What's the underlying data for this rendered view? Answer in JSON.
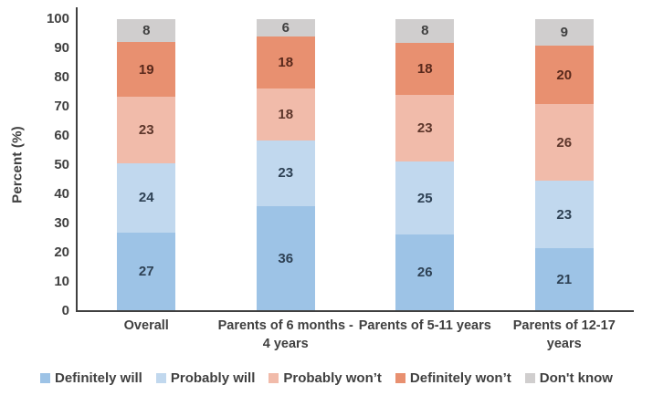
{
  "chart_data": {
    "type": "bar",
    "variant": "stacked-100",
    "title": "",
    "ylabel": "Percent (%)",
    "xlabel": "",
    "ylim": [
      0,
      100
    ],
    "yticks": [
      0,
      10,
      20,
      30,
      40,
      50,
      60,
      70,
      80,
      90,
      100
    ],
    "grid": false,
    "legend_position": "bottom",
    "categories": [
      "Overall",
      "Parents of 6 months - 4 years",
      "Parents of 5-11 years",
      "Parents of 12-17 years"
    ],
    "series": [
      {
        "name": "Definitely will",
        "color": "#9DC3E6",
        "label_color": "#2E4154",
        "values": [
          27,
          36,
          26,
          21
        ]
      },
      {
        "name": "Probably will",
        "color": "#C1D8EE",
        "label_color": "#2E4154",
        "values": [
          24,
          23,
          25,
          23
        ]
      },
      {
        "name": "Probably won’t",
        "color": "#F1BBAA",
        "label_color": "#5D362B",
        "values": [
          23,
          18,
          23,
          26
        ]
      },
      {
        "name": "Definitely won’t",
        "color": "#E89070",
        "label_color": "#59291C",
        "values": [
          19,
          18,
          18,
          20
        ]
      },
      {
        "name": "Don't know",
        "color": "#D0CECE",
        "label_color": "#404040",
        "values": [
          8,
          6,
          8,
          9
        ]
      }
    ],
    "axis_color": "#404040",
    "text_color": "#404040"
  }
}
